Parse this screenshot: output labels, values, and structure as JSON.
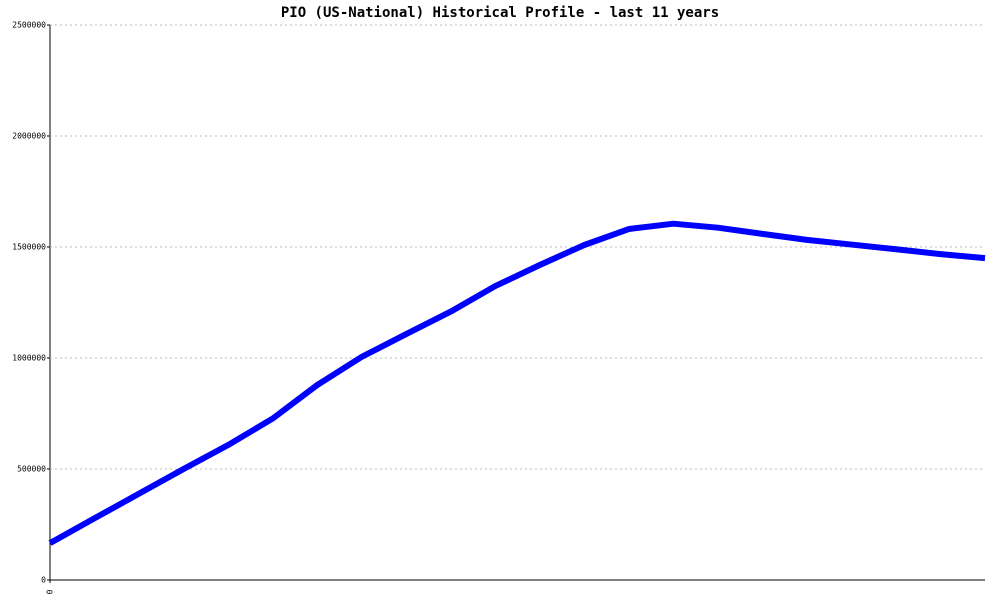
{
  "chart_data": {
    "type": "line",
    "title": "PIO (US-National) Historical Profile - last 11 years",
    "categories": [
      "0",
      null,
      null,
      null,
      null,
      null,
      null,
      null,
      null,
      null,
      null,
      null,
      null,
      null,
      null,
      null,
      null,
      null,
      null,
      null,
      null,
      null
    ],
    "series": [
      {
        "name": "PIO",
        "color": "#0000ff",
        "values": [
          166000,
          278000,
          389000,
          500000,
          608000,
          727000,
          878000,
          1005000,
          1108000,
          1209000,
          1324000,
          1419000,
          1509000,
          1581000,
          1605000,
          1587000,
          1559000,
          1532000,
          1511000,
          1490000,
          1468000,
          1450000
        ]
      }
    ],
    "ylim": [
      0,
      2500000
    ],
    "yticks": [
      0,
      500000,
      1000000,
      1500000,
      2000000,
      2500000
    ],
    "grid": true
  }
}
